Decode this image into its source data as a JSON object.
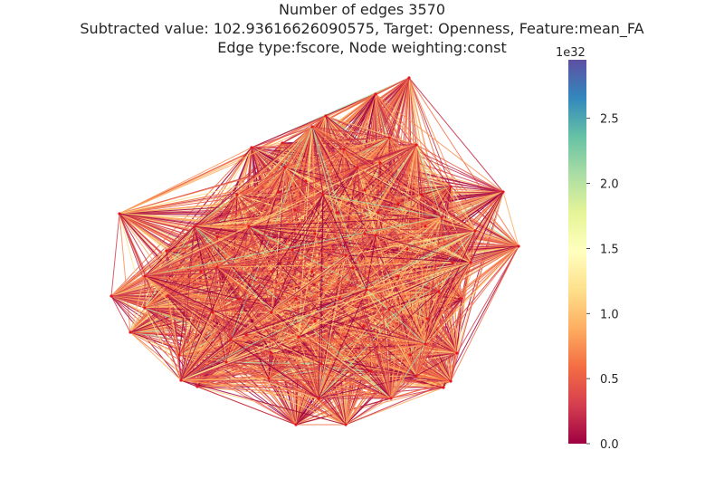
{
  "title": {
    "line1": "Number of edges 3570",
    "line2": "Subtracted value: 102.93616626090575, Target: Openness, Feature:mean_FA",
    "line3": "Edge type:fscore, Node weighting:const"
  },
  "colorbar": {
    "colormap": "Spectral",
    "stops": [
      "#9e0142",
      "#d53e4f",
      "#f46d43",
      "#fdae61",
      "#fee08b",
      "#ffffbf",
      "#e6f598",
      "#abdda4",
      "#66c2a5",
      "#3288bd",
      "#5e4fa2"
    ],
    "exponent_label": "1e32",
    "range": [
      0,
      2.95
    ],
    "ticks": [
      {
        "value": 0.0,
        "label": "0.0"
      },
      {
        "value": 0.5,
        "label": "0.5"
      },
      {
        "value": 1.0,
        "label": "1.0"
      },
      {
        "value": 1.5,
        "label": "1.5"
      },
      {
        "value": 2.0,
        "label": "2.0"
      },
      {
        "value": 2.5,
        "label": "2.5"
      }
    ]
  },
  "graph": {
    "node_count": 85,
    "edge_count": 3570,
    "node_color": "#e8141d",
    "edge_palette": [
      "#9e0142",
      "#c2294a",
      "#d53e4f",
      "#e85b4a",
      "#f46d43",
      "#f98e52",
      "#fdae61",
      "#fec877",
      "#fee08b",
      "#abdda4"
    ]
  }
}
